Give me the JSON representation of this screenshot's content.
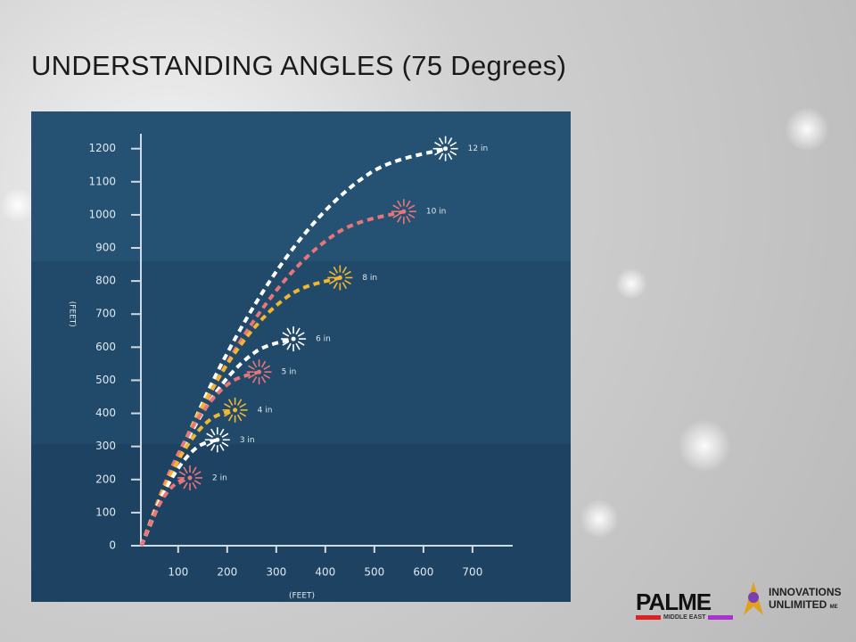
{
  "slide": {
    "title": "UNDERSTANDING ANGLES (75 Degrees)"
  },
  "chart_data": {
    "type": "line",
    "y_label": "(FEET)",
    "x_label": "(FEET)",
    "xlim": [
      24,
      782
    ],
    "ylim": [
      0,
      1245
    ],
    "xticks": [
      100,
      200,
      300,
      400,
      500,
      600,
      700
    ],
    "yticks": [
      0,
      100,
      200,
      300,
      400,
      500,
      600,
      700,
      800,
      900,
      1000,
      1100,
      1200
    ],
    "series": [
      {
        "name": "12 in",
        "color": "#ffffff",
        "x": [
          25,
          180,
          335,
          490,
          645
        ],
        "values": [
          0,
          525,
          900,
          1125,
          1200
        ]
      },
      {
        "name": "10 in",
        "color": "#e8757a",
        "x": [
          25,
          159,
          293,
          426,
          560
        ],
        "values": [
          0,
          442,
          758,
          947,
          1010
        ]
      },
      {
        "name": "8 in",
        "color": "#f2b631",
        "x": [
          25,
          126,
          228,
          329,
          430
        ],
        "values": [
          0,
          354,
          608,
          759,
          810
        ]
      },
      {
        "name": "6 in",
        "color": "#ffffff",
        "x": [
          25,
          103,
          180,
          258,
          335
        ],
        "values": [
          0,
          273,
          469,
          586,
          625
        ]
      },
      {
        "name": "5 in",
        "color": "#e8757a",
        "x": [
          25,
          85,
          145,
          205,
          265
        ],
        "values": [
          0,
          230,
          394,
          492,
          525
        ]
      },
      {
        "name": "4 in",
        "color": "#f2b631",
        "x": [
          25,
          73,
          121,
          168,
          216
        ],
        "values": [
          0,
          179,
          308,
          384,
          410
        ]
      },
      {
        "name": "3 in",
        "color": "#ffffff",
        "x": [
          25,
          64,
          103,
          141,
          180
        ],
        "values": [
          0,
          140,
          240,
          300,
          320
        ]
      },
      {
        "name": "2 in",
        "color": "#e8757a",
        "x": [
          25,
          50,
          74,
          99,
          124
        ],
        "values": [
          0,
          90,
          154,
          192,
          205
        ]
      }
    ]
  },
  "logos": {
    "palme": "PALME",
    "palme_sub": "MIDDLE EAST",
    "innovations": "INNOVATIONS",
    "unlimited": "UNLIMITED",
    "me": "ME"
  }
}
